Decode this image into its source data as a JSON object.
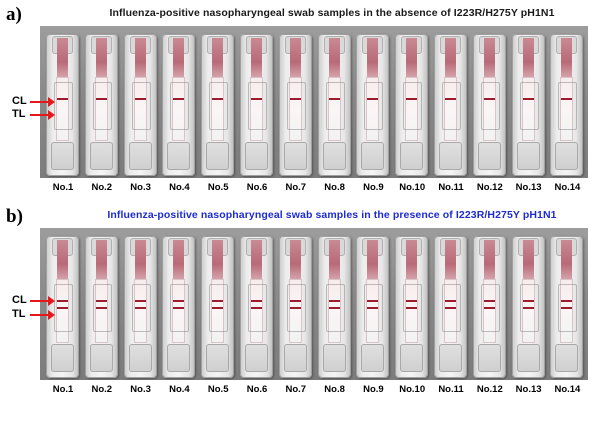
{
  "panels": [
    {
      "letter": "a)",
      "title": "Influenza-positive nasopharyngeal swab samples in the absence of I223R/H275Y pH1N1",
      "title_color": "#1a1a1a",
      "control_line_label": "CL",
      "test_line_label": "TL",
      "arrow_color": "#e3191b",
      "samples": [
        {
          "label": "No.1",
          "control_line": true,
          "test_line": false
        },
        {
          "label": "No.2",
          "control_line": true,
          "test_line": false
        },
        {
          "label": "No.3",
          "control_line": true,
          "test_line": false
        },
        {
          "label": "No.4",
          "control_line": true,
          "test_line": false
        },
        {
          "label": "No.5",
          "control_line": true,
          "test_line": false
        },
        {
          "label": "No.6",
          "control_line": true,
          "test_line": false
        },
        {
          "label": "No.7",
          "control_line": true,
          "test_line": false
        },
        {
          "label": "No.8",
          "control_line": true,
          "test_line": false
        },
        {
          "label": "No.9",
          "control_line": true,
          "test_line": false
        },
        {
          "label": "No.10",
          "control_line": true,
          "test_line": false
        },
        {
          "label": "No.11",
          "control_line": true,
          "test_line": false
        },
        {
          "label": "No.12",
          "control_line": true,
          "test_line": false
        },
        {
          "label": "No.13",
          "control_line": true,
          "test_line": false
        },
        {
          "label": "No.14",
          "control_line": true,
          "test_line": false
        }
      ]
    },
    {
      "letter": "b)",
      "title": "Influenza-positive nasopharyngeal swab samples in the presence of I223R/H275Y pH1N1",
      "title_color": "#1d2bd0",
      "control_line_label": "CL",
      "test_line_label": "TL",
      "arrow_color": "#e3191b",
      "samples": [
        {
          "label": "No.1",
          "control_line": true,
          "test_line": true
        },
        {
          "label": "No.2",
          "control_line": true,
          "test_line": true
        },
        {
          "label": "No.3",
          "control_line": true,
          "test_line": true
        },
        {
          "label": "No.4",
          "control_line": true,
          "test_line": true
        },
        {
          "label": "No.5",
          "control_line": true,
          "test_line": true
        },
        {
          "label": "No.6",
          "control_line": true,
          "test_line": true
        },
        {
          "label": "No.7",
          "control_line": true,
          "test_line": true
        },
        {
          "label": "No.8",
          "control_line": true,
          "test_line": true
        },
        {
          "label": "No.9",
          "control_line": true,
          "test_line": true
        },
        {
          "label": "No.10",
          "control_line": true,
          "test_line": true
        },
        {
          "label": "No.11",
          "control_line": true,
          "test_line": true
        },
        {
          "label": "No.12",
          "control_line": true,
          "test_line": true
        },
        {
          "label": "No.13",
          "control_line": true,
          "test_line": true
        },
        {
          "label": "No.14",
          "control_line": true,
          "test_line": true
        }
      ]
    }
  ]
}
